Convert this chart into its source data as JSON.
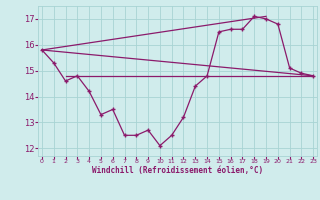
{
  "x": [
    0,
    1,
    2,
    3,
    4,
    5,
    6,
    7,
    8,
    9,
    10,
    11,
    12,
    13,
    14,
    15,
    16,
    17,
    18,
    19,
    20,
    21,
    22,
    23
  ],
  "windchill": [
    15.8,
    15.3,
    14.6,
    14.8,
    14.2,
    13.3,
    13.5,
    12.5,
    12.5,
    12.7,
    12.1,
    12.5,
    13.2,
    14.4,
    14.8,
    16.5,
    16.6,
    16.6,
    17.1,
    17.0,
    16.8,
    15.1,
    14.9,
    14.8
  ],
  "tri_line1_x": [
    0,
    19
  ],
  "tri_line1_y": [
    15.8,
    17.1
  ],
  "tri_line2_x": [
    0,
    23
  ],
  "tri_line2_y": [
    15.8,
    14.8
  ],
  "flat_line_x": [
    2,
    23
  ],
  "flat_line_y": 14.8,
  "color": "#8b1a6b",
  "bg_color": "#d0ecec",
  "grid_color": "#a8d4d4",
  "xlabel": "Windchill (Refroidissement éolien,°C)",
  "xlim": [
    -0.3,
    23.3
  ],
  "ylim": [
    11.7,
    17.5
  ],
  "yticks": [
    12,
    13,
    14,
    15,
    16,
    17
  ],
  "xticks": [
    0,
    1,
    2,
    3,
    4,
    5,
    6,
    7,
    8,
    9,
    10,
    11,
    12,
    13,
    14,
    15,
    16,
    17,
    18,
    19,
    20,
    21,
    22,
    23
  ]
}
